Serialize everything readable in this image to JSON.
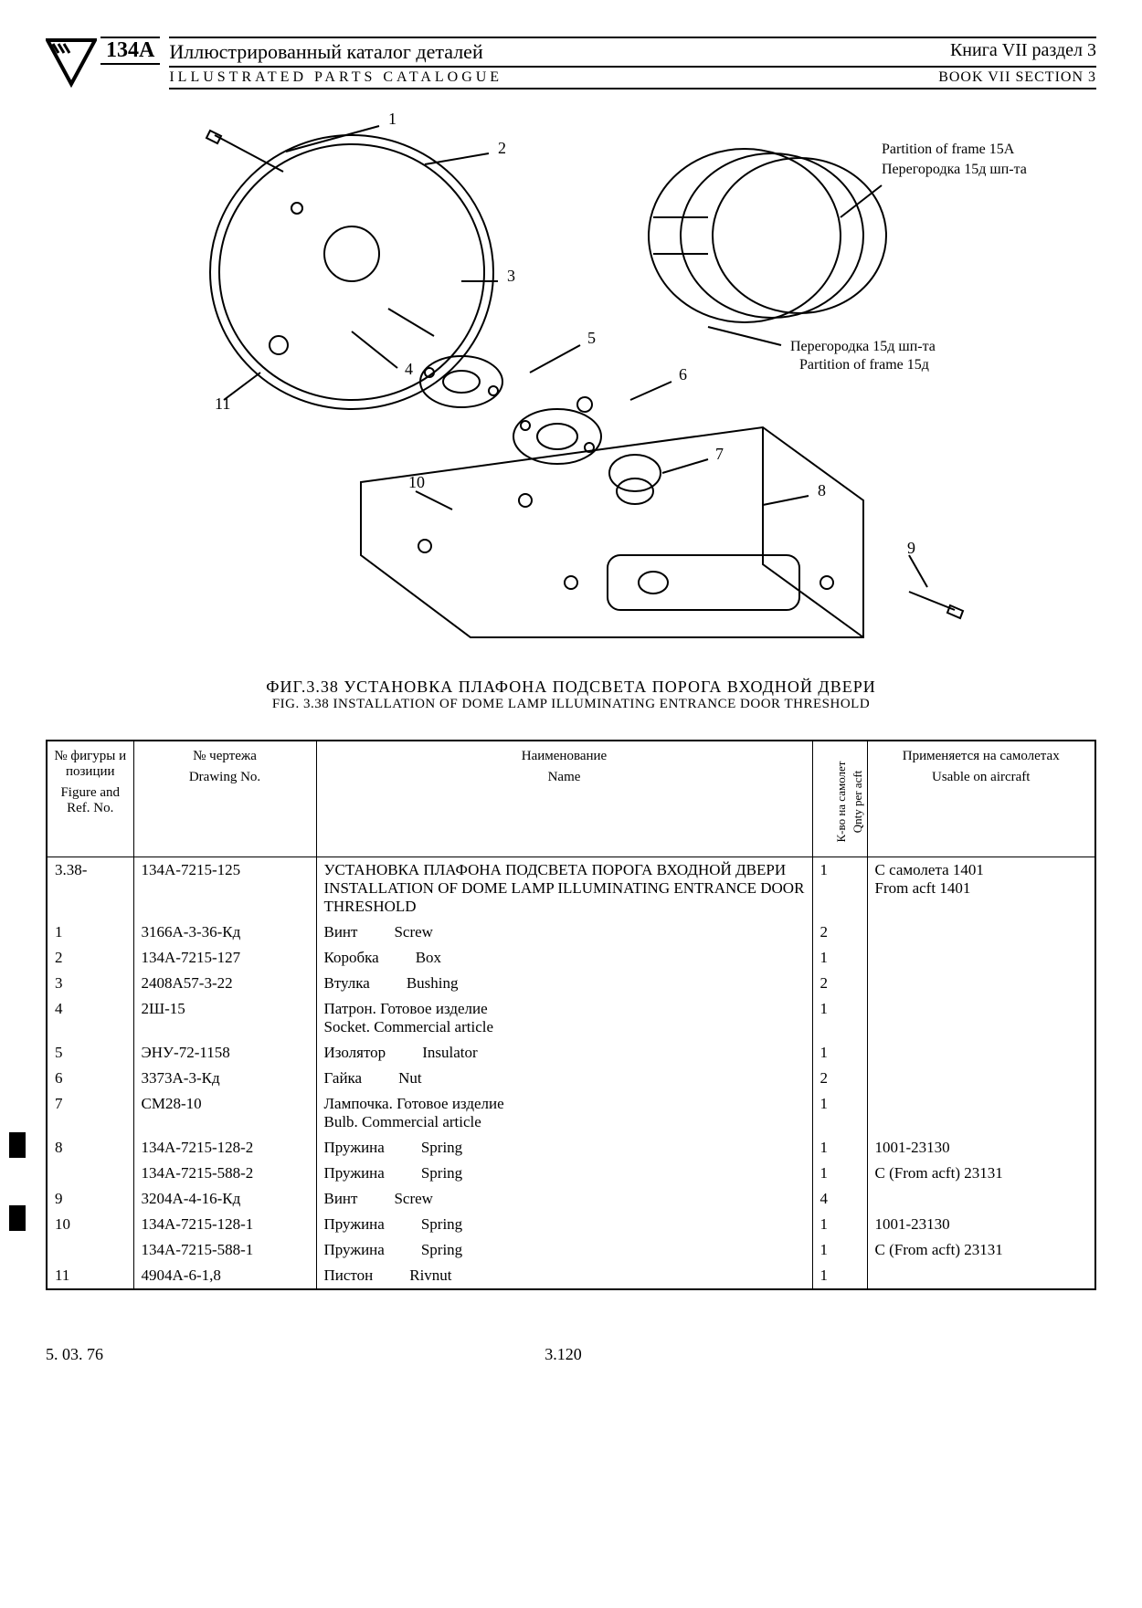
{
  "header": {
    "model": "134A",
    "title_ru": "Иллюстрированный каталог деталей",
    "title_en": "ILLUSTRATED PARTS CATALOGUE",
    "book_ru": "Книга VII раздел 3",
    "book_en": "BOOK VII SECTION 3"
  },
  "diagram": {
    "callouts": [
      "1",
      "2",
      "3",
      "4",
      "5",
      "6",
      "7",
      "8",
      "9",
      "10",
      "11"
    ],
    "label1_en": "Partition of frame 15A",
    "label1_ru": "Перегородка 15д шп-та",
    "label2_ru": "Перегородка 15д шп-та",
    "label2_en": "Partition of frame 15д"
  },
  "figure": {
    "ru": "ФИГ.3.38 УСТАНОВКА ПЛАФОНА ПОДСВЕТА ПОРОГА ВХОДНОЙ ДВЕРИ",
    "en": "FIG. 3.38 INSTALLATION OF DOME LAMP ILLUMINATING ENTRANCE DOOR THRESHOLD"
  },
  "table": {
    "headers": {
      "fig_ru": "№ фигуры и позиции",
      "fig_en": "Figure and Ref. No.",
      "drw_ru": "№ чертежа",
      "drw_en": "Drawing No.",
      "name_ru": "Наименование",
      "name_en": "Name",
      "qty_ru": "К-во на самолет",
      "qty_en": "Qnty per acft",
      "use_ru": "Применяется на самолетах",
      "use_en": "Usable on aircraft"
    },
    "fig_prefix": "3.38-",
    "rows": [
      {
        "ref": "",
        "drw": "134A-7215-125",
        "name_ru": "УСТАНОВКА ПЛАФОНА ПОДСВЕТА ПОРОГА ВХОДНОЙ ДВЕРИ",
        "name_en": "INSTALLATION OF DOME LAMP ILLUMINATING ENTRANCE DOOR THRESHOLD",
        "qty": "1",
        "use": "С самолета 1401\nFrom acft 1401",
        "multiline": true
      },
      {
        "ref": "1",
        "drw": "3166A-3-36-Кд",
        "name_ru": "Винт",
        "name_en": "Screw",
        "qty": "2",
        "use": ""
      },
      {
        "ref": "2",
        "drw": "134A-7215-127",
        "name_ru": "Коробка",
        "name_en": "Box",
        "qty": "1",
        "use": ""
      },
      {
        "ref": "3",
        "drw": "2408A57-3-22",
        "name_ru": "Втулка",
        "name_en": "Bushing",
        "qty": "2",
        "use": ""
      },
      {
        "ref": "4",
        "drw": "2Ш-15",
        "name_ru": "Патрон. Готовое изделие",
        "name_en": "Socket. Commercial article",
        "qty": "1",
        "use": "",
        "multiline": true
      },
      {
        "ref": "5",
        "drw": "ЭНУ-72-1158",
        "name_ru": "Изолятор",
        "name_en": "Insulator",
        "qty": "1",
        "use": ""
      },
      {
        "ref": "6",
        "drw": "3373A-3-Кд",
        "name_ru": "Гайка",
        "name_en": "Nut",
        "qty": "2",
        "use": ""
      },
      {
        "ref": "7",
        "drw": "СМ28-10",
        "name_ru": "Лампочка. Готовое изделие",
        "name_en": "Bulb. Commercial article",
        "qty": "1",
        "use": "",
        "multiline": true
      },
      {
        "ref": "8",
        "drw": "134A-7215-128-2",
        "name_ru": "Пружина",
        "name_en": "Spring",
        "qty": "1",
        "use": "1001-23130"
      },
      {
        "ref": "",
        "drw": "134A-7215-588-2",
        "name_ru": "Пружина",
        "name_en": "Spring",
        "qty": "1",
        "use": "С (From acft) 23131"
      },
      {
        "ref": "9",
        "drw": "3204A-4-16-Кд",
        "name_ru": "Винт",
        "name_en": "Screw",
        "qty": "4",
        "use": ""
      },
      {
        "ref": "10",
        "drw": "134A-7215-128-1",
        "name_ru": "Пружина",
        "name_en": "Spring",
        "qty": "1",
        "use": "1001-23130"
      },
      {
        "ref": "",
        "drw": "134A-7215-588-1",
        "name_ru": "Пружина",
        "name_en": "Spring",
        "qty": "1",
        "use": "С (From acft) 23131"
      },
      {
        "ref": "11",
        "drw": "4904A-6-1,8",
        "name_ru": "Пистон",
        "name_en": "Rivnut",
        "qty": "1",
        "use": ""
      }
    ]
  },
  "footer": {
    "date": "5. 03. 76",
    "page": "3.120"
  }
}
